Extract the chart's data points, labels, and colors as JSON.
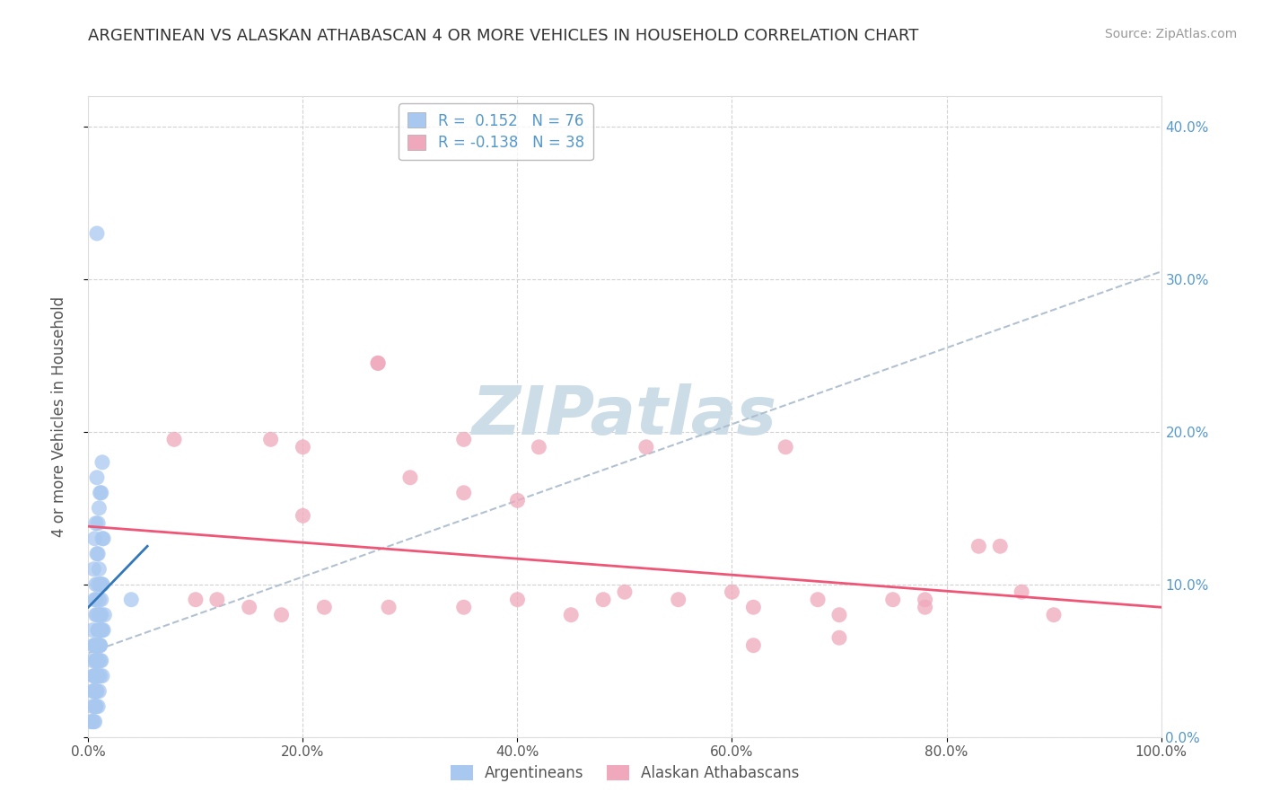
{
  "title": "ARGENTINEAN VS ALASKAN ATHABASCAN 4 OR MORE VEHICLES IN HOUSEHOLD CORRELATION CHART",
  "source": "Source: ZipAtlas.com",
  "ylabel": "4 or more Vehicles in Household",
  "xmin": 0.0,
  "xmax": 1.0,
  "ymin": 0.0,
  "ymax": 0.42,
  "xticks": [
    0.0,
    0.2,
    0.4,
    0.6,
    0.8,
    1.0
  ],
  "xticklabels": [
    "0.0%",
    "20.0%",
    "40.0%",
    "60.0%",
    "80.0%",
    "100.0%"
  ],
  "yticks": [
    0.0,
    0.1,
    0.2,
    0.3,
    0.4
  ],
  "yticklabels": [
    "0.0%",
    "10.0%",
    "20.0%",
    "30.0%",
    "40.0%"
  ],
  "blue_color": "#a8c8f0",
  "pink_color": "#f0a8bc",
  "blue_line_color": "#3377bb",
  "pink_line_color": "#ee5577",
  "dash_line_color": "#aabbcc",
  "watermark_color": "#ccdde8",
  "background_color": "#ffffff",
  "grid_color": "#cccccc",
  "right_tick_color": "#5599cc",
  "blue_scatter_x": [
    0.008,
    0.01,
    0.005,
    0.012,
    0.015,
    0.006,
    0.009,
    0.011,
    0.007,
    0.013,
    0.004,
    0.008,
    0.012,
    0.009,
    0.006,
    0.01,
    0.014,
    0.007,
    0.005,
    0.011,
    0.008,
    0.013,
    0.009,
    0.006,
    0.01,
    0.012,
    0.007,
    0.011,
    0.008,
    0.014,
    0.005,
    0.009,
    0.013,
    0.007,
    0.01,
    0.006,
    0.011,
    0.008,
    0.012,
    0.009,
    0.004,
    0.007,
    0.01,
    0.013,
    0.006,
    0.009,
    0.012,
    0.008,
    0.011,
    0.005,
    0.007,
    0.01,
    0.013,
    0.006,
    0.009,
    0.004,
    0.008,
    0.011,
    0.007,
    0.013,
    0.005,
    0.009,
    0.012,
    0.006,
    0.01,
    0.004,
    0.008,
    0.011,
    0.003,
    0.007,
    0.006,
    0.009,
    0.005,
    0.003,
    0.007,
    0.04
  ],
  "blue_scatter_y": [
    0.33,
    0.08,
    0.06,
    0.07,
    0.08,
    0.06,
    0.07,
    0.08,
    0.09,
    0.1,
    0.05,
    0.06,
    0.07,
    0.05,
    0.04,
    0.06,
    0.07,
    0.05,
    0.04,
    0.06,
    0.17,
    0.18,
    0.14,
    0.13,
    0.15,
    0.16,
    0.14,
    0.16,
    0.12,
    0.13,
    0.11,
    0.12,
    0.13,
    0.1,
    0.11,
    0.09,
    0.1,
    0.08,
    0.09,
    0.1,
    0.07,
    0.08,
    0.09,
    0.1,
    0.06,
    0.07,
    0.08,
    0.05,
    0.06,
    0.04,
    0.05,
    0.06,
    0.07,
    0.03,
    0.04,
    0.03,
    0.04,
    0.05,
    0.03,
    0.04,
    0.03,
    0.04,
    0.05,
    0.02,
    0.03,
    0.02,
    0.03,
    0.04,
    0.01,
    0.02,
    0.01,
    0.02,
    0.01,
    0.01,
    0.02,
    0.09
  ],
  "pink_scatter_x": [
    0.08,
    0.17,
    0.2,
    0.27,
    0.27,
    0.35,
    0.42,
    0.5,
    0.52,
    0.6,
    0.65,
    0.68,
    0.75,
    0.83,
    0.87,
    0.9,
    0.2,
    0.3,
    0.35,
    0.4,
    0.45,
    0.55,
    0.62,
    0.7,
    0.78,
    0.35,
    0.4,
    0.48,
    0.12,
    0.18,
    0.22,
    0.28,
    0.1,
    0.15,
    0.62,
    0.7,
    0.78,
    0.85
  ],
  "pink_scatter_y": [
    0.195,
    0.195,
    0.19,
    0.245,
    0.245,
    0.195,
    0.19,
    0.095,
    0.19,
    0.095,
    0.19,
    0.09,
    0.09,
    0.125,
    0.095,
    0.08,
    0.145,
    0.17,
    0.16,
    0.155,
    0.08,
    0.09,
    0.085,
    0.08,
    0.09,
    0.085,
    0.09,
    0.09,
    0.09,
    0.08,
    0.085,
    0.085,
    0.09,
    0.085,
    0.06,
    0.065,
    0.085,
    0.125
  ],
  "blue_line_x": [
    0.0,
    0.055
  ],
  "blue_line_y": [
    0.085,
    0.125
  ],
  "pink_line_x": [
    0.0,
    1.0
  ],
  "pink_line_y": [
    0.138,
    0.085
  ],
  "dash_line_x": [
    0.0,
    1.0
  ],
  "dash_line_y": [
    0.055,
    0.305
  ]
}
